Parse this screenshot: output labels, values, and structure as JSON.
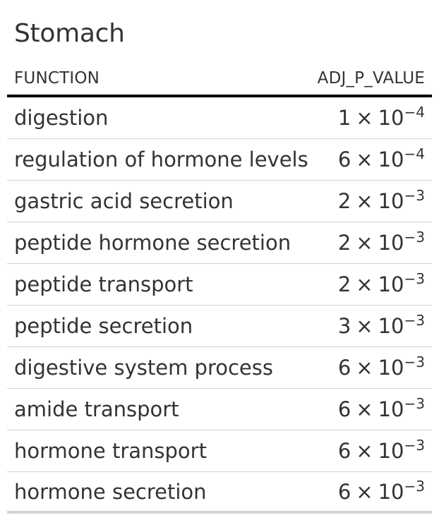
{
  "table": {
    "title": "Stomach",
    "columns": {
      "function": "FUNCTION",
      "adj_p_value": "ADJ_P_VALUE"
    },
    "rows": [
      {
        "function": "digestion",
        "mantissa": "1",
        "times": "×",
        "base": "10",
        "exponent": "−4"
      },
      {
        "function": "regulation of hormone levels",
        "mantissa": "6",
        "times": "×",
        "base": "10",
        "exponent": "−4"
      },
      {
        "function": "gastric acid secretion",
        "mantissa": "2",
        "times": "×",
        "base": "10",
        "exponent": "−3"
      },
      {
        "function": "peptide hormone secretion",
        "mantissa": "2",
        "times": "×",
        "base": "10",
        "exponent": "−3"
      },
      {
        "function": "peptide transport",
        "mantissa": "2",
        "times": "×",
        "base": "10",
        "exponent": "−3"
      },
      {
        "function": "peptide secretion",
        "mantissa": "3",
        "times": "×",
        "base": "10",
        "exponent": "−3"
      },
      {
        "function": "digestive system process",
        "mantissa": "6",
        "times": "×",
        "base": "10",
        "exponent": "−3"
      },
      {
        "function": "amide transport",
        "mantissa": "6",
        "times": "×",
        "base": "10",
        "exponent": "−3"
      },
      {
        "function": "hormone transport",
        "mantissa": "6",
        "times": "×",
        "base": "10",
        "exponent": "−3"
      },
      {
        "function": "hormone secretion",
        "mantissa": "6",
        "times": "×",
        "base": "10",
        "exponent": "−3"
      }
    ]
  }
}
